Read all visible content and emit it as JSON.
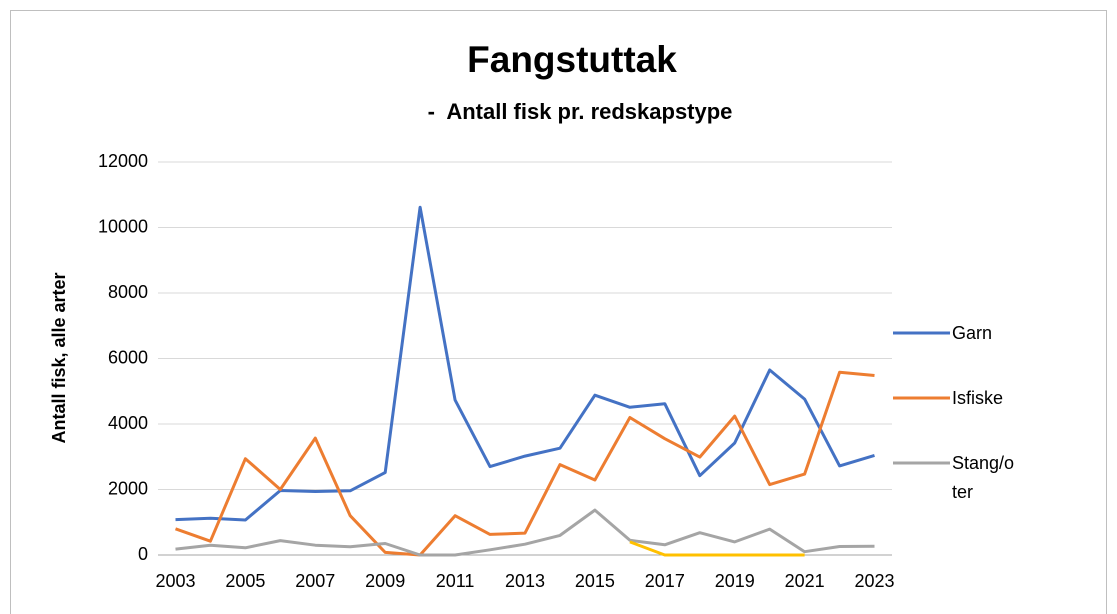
{
  "chart_data": {
    "type": "line",
    "title": "Fangstuttak",
    "subtitle": "-  Antall fisk pr. redskapstype",
    "y_label": "Antall fisk, alle arter",
    "x": [
      2003,
      2004,
      2005,
      2006,
      2007,
      2008,
      2009,
      2010,
      2011,
      2012,
      2013,
      2014,
      2015,
      2016,
      2017,
      2018,
      2019,
      2020,
      2021,
      2022,
      2023
    ],
    "xlim": [
      2002.5,
      2023.5
    ],
    "xticks": [
      2003,
      2005,
      2007,
      2009,
      2011,
      2013,
      2015,
      2017,
      2019,
      2021,
      2023
    ],
    "ylim": [
      0,
      12000
    ],
    "yticks": [
      0,
      2000,
      4000,
      6000,
      8000,
      10000,
      12000
    ],
    "grid": true,
    "legend": "right",
    "series": [
      {
        "name": "Garn",
        "color": "#4472c4",
        "values": [
          1080,
          1120,
          1070,
          1970,
          1940,
          1960,
          2520,
          10620,
          4730,
          2700,
          3020,
          3260,
          4880,
          4510,
          4620,
          2420,
          3420,
          5650,
          4760,
          2720,
          3040
        ]
      },
      {
        "name": "Isfiske",
        "color": "#ed7d31",
        "values": [
          800,
          420,
          2940,
          2000,
          3570,
          1200,
          80,
          0,
          1200,
          630,
          670,
          2760,
          2290,
          4200,
          3550,
          2990,
          4240,
          2150,
          2470,
          5580,
          5480
        ]
      },
      {
        "name": "Stang/oter",
        "color": "#a5a5a5",
        "values": [
          180,
          300,
          220,
          440,
          300,
          250,
          350,
          0,
          0,
          160,
          330,
          600,
          1370,
          450,
          310,
          680,
          400,
          790,
          100,
          260,
          270
        ]
      },
      {
        "color": "#ffc000",
        "values": [
          null,
          null,
          null,
          null,
          null,
          null,
          null,
          null,
          null,
          null,
          null,
          null,
          null,
          400,
          0,
          0,
          0,
          0,
          0,
          null,
          null
        ]
      }
    ]
  }
}
